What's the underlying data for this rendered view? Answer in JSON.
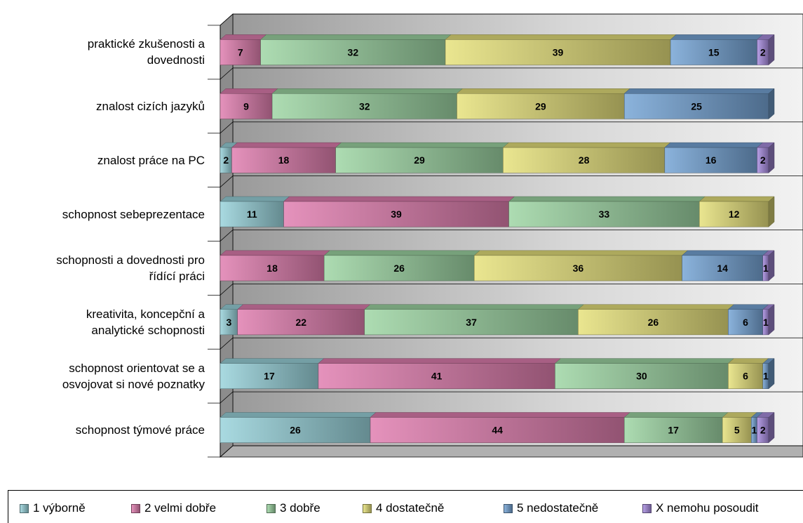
{
  "chart_data": {
    "type": "bar",
    "orientation": "horizontal",
    "stacked": true,
    "percent_scale": true,
    "style": "3d",
    "grid": true,
    "legend_position": "bottom",
    "categories": [
      [
        "praktické zkušenosti a",
        "dovednosti"
      ],
      [
        "znalost cizích jazyků"
      ],
      [
        "znalost práce na PC"
      ],
      [
        "schopnost sebeprezentace"
      ],
      [
        "schopnosti a dovednosti pro",
        "řídící práci"
      ],
      [
        "kreativita, koncepční a",
        "analytické schopnosti"
      ],
      [
        "schopnost orientovat se a",
        "osvojovat si nové poznatky"
      ],
      [
        "schopnost týmové práce"
      ]
    ],
    "series": [
      {
        "name": "1 výborně",
        "color": "#9ad4dc",
        "values": [
          0,
          0,
          2,
          11,
          0,
          3,
          17,
          26
        ]
      },
      {
        "name": "2 velmi dobře",
        "color": "#e07fb0",
        "values": [
          7,
          9,
          18,
          39,
          18,
          22,
          41,
          44
        ]
      },
      {
        "name": "3 dobře",
        "color": "#9ed6a4",
        "values": [
          32,
          32,
          29,
          33,
          26,
          37,
          30,
          17
        ]
      },
      {
        "name": "4 dostatečně",
        "color": "#e6e17c",
        "values": [
          39,
          29,
          28,
          12,
          36,
          26,
          6,
          5
        ]
      },
      {
        "name": "5 nedostatečně",
        "color": "#77a5d6",
        "values": [
          15,
          25,
          16,
          0,
          14,
          6,
          1,
          1
        ]
      },
      {
        "name": "X nemohu posoudit",
        "color": "#a98ee0",
        "values": [
          2,
          0,
          2,
          0,
          1,
          1,
          0,
          2
        ]
      }
    ],
    "title": "",
    "xlabel": "",
    "ylabel": ""
  }
}
